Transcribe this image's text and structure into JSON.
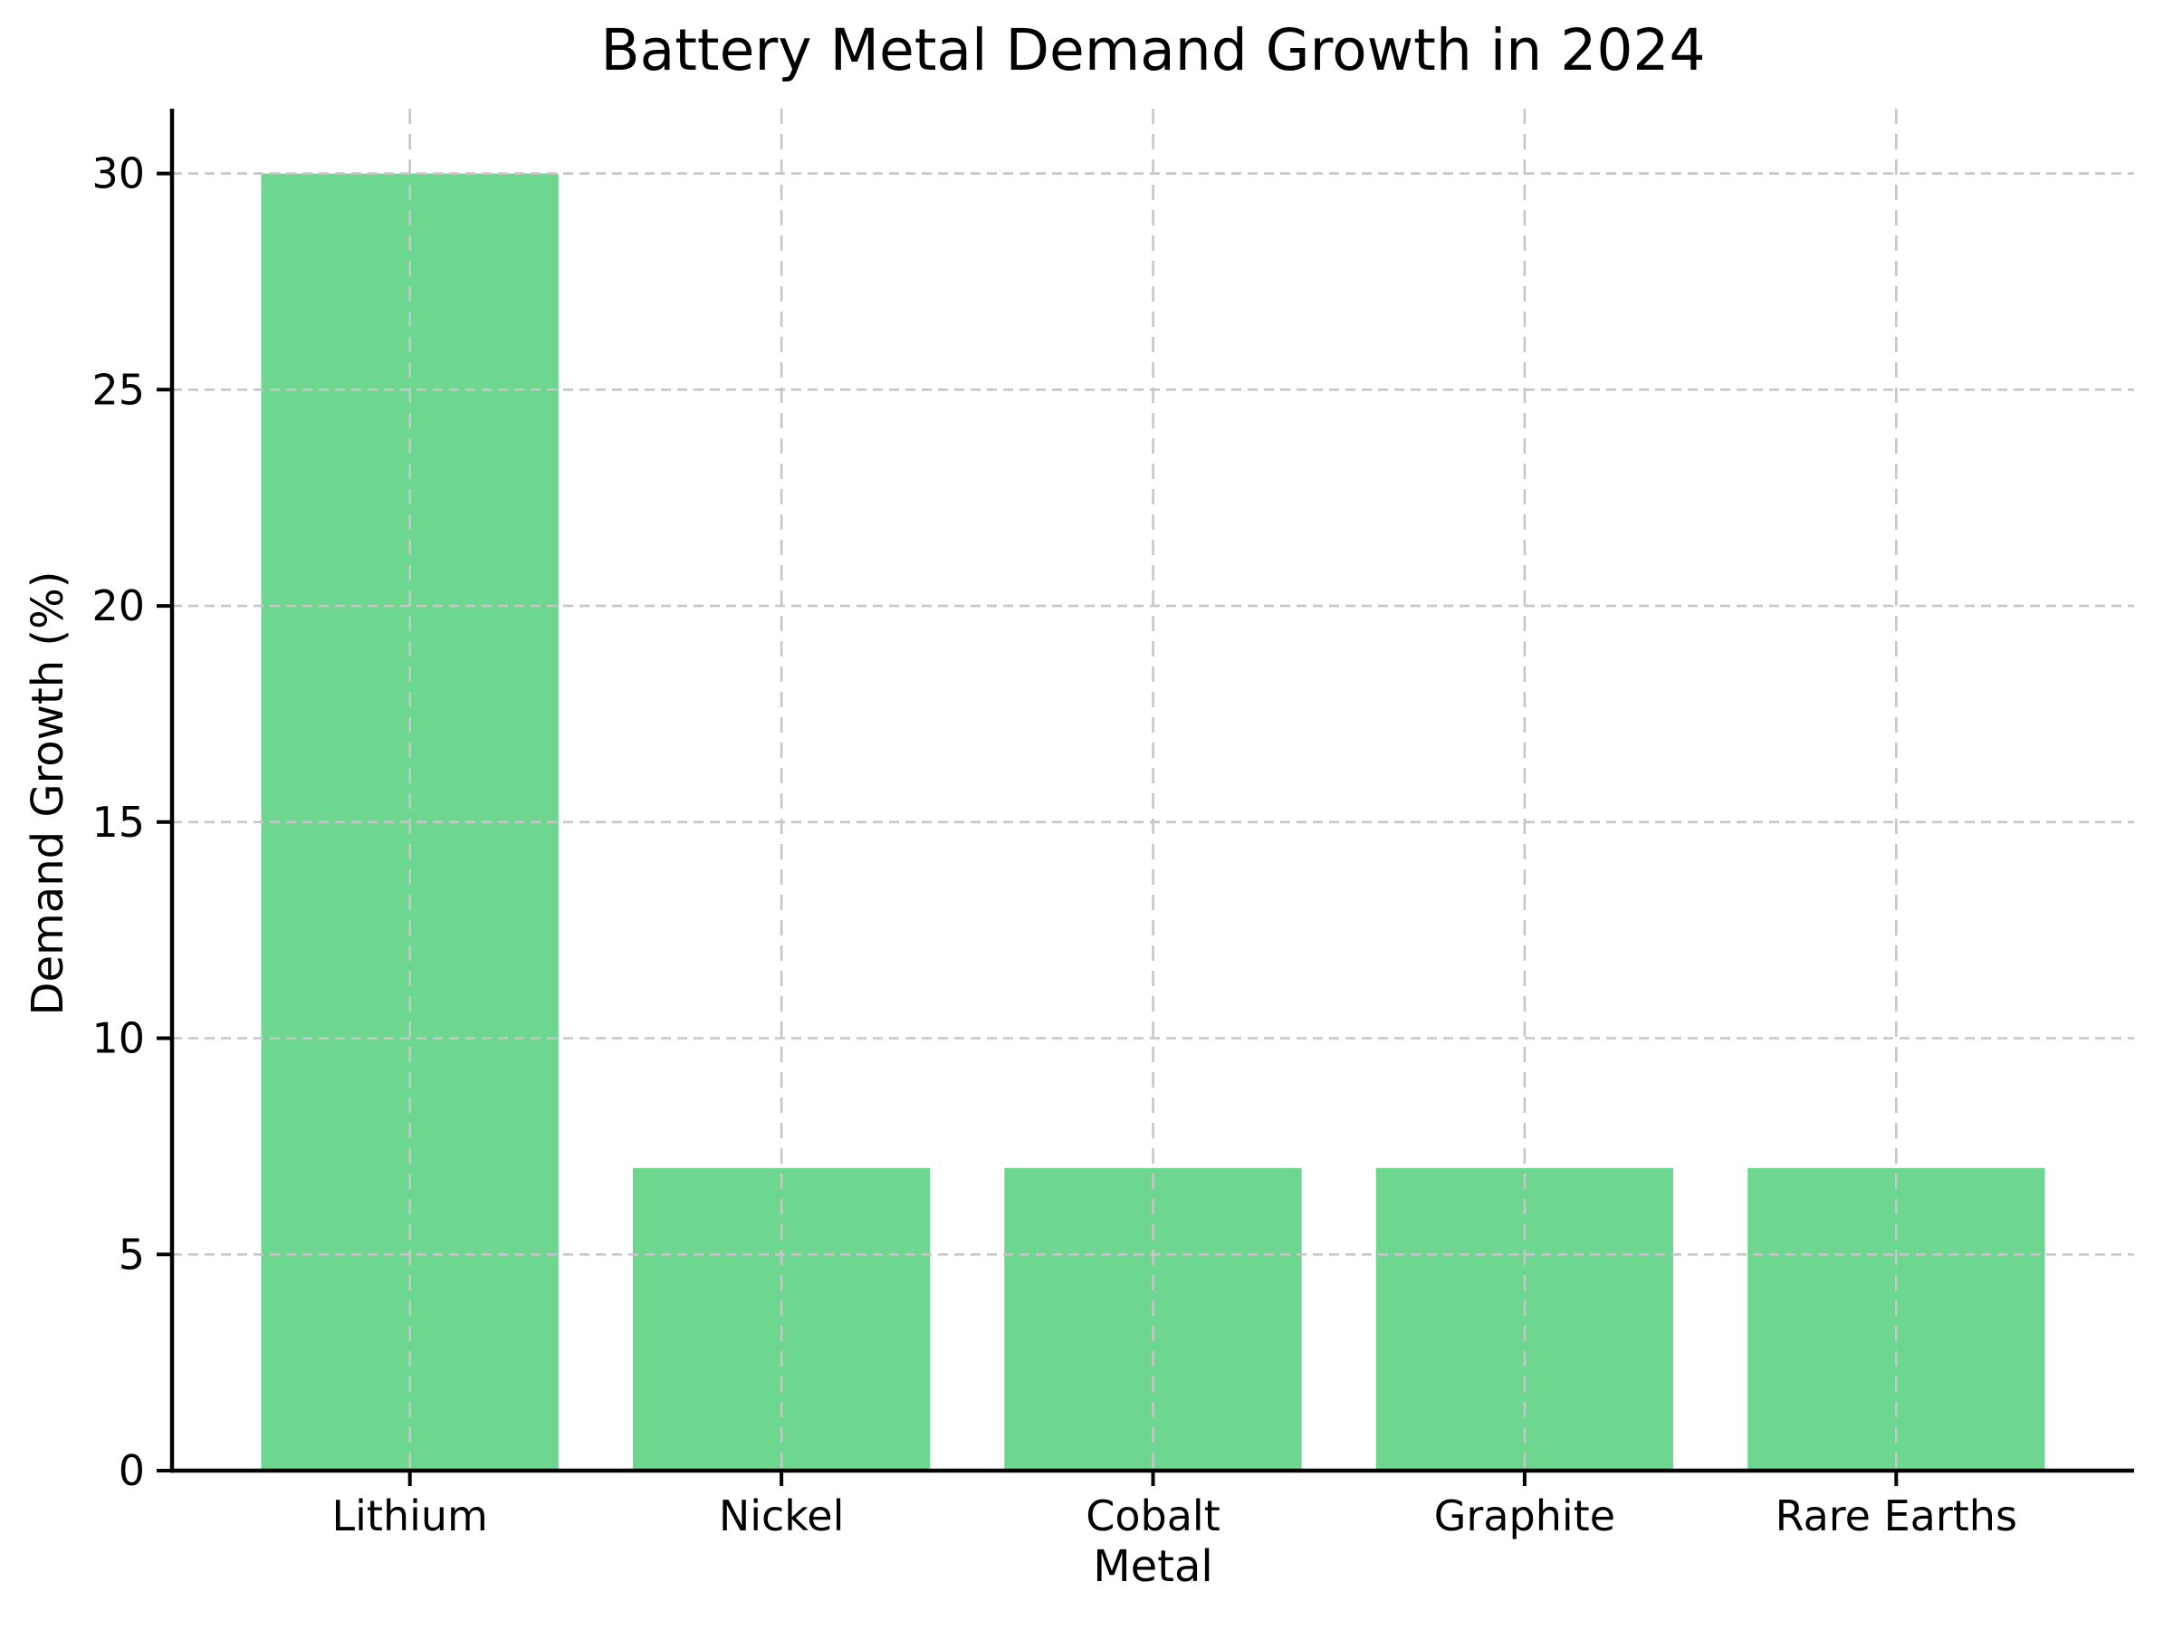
{
  "chart_data": {
    "type": "bar",
    "title": "Battery Metal Demand Growth in 2024",
    "xlabel": "Metal",
    "ylabel": "Demand Growth (%)",
    "categories": [
      "Lithium",
      "Nickel",
      "Cobalt",
      "Graphite",
      "Rare Earths"
    ],
    "values": [
      30,
      7,
      7,
      7,
      7
    ],
    "ylim": [
      0,
      31.5
    ],
    "yticks": [
      0,
      5,
      10,
      15,
      20,
      25,
      30
    ],
    "bar_color": "#6dd790",
    "grid": "dashed, both axes, drawn above bars",
    "grid_color": "#c6c6c6",
    "axis_color": "#000000",
    "legend": "none"
  }
}
